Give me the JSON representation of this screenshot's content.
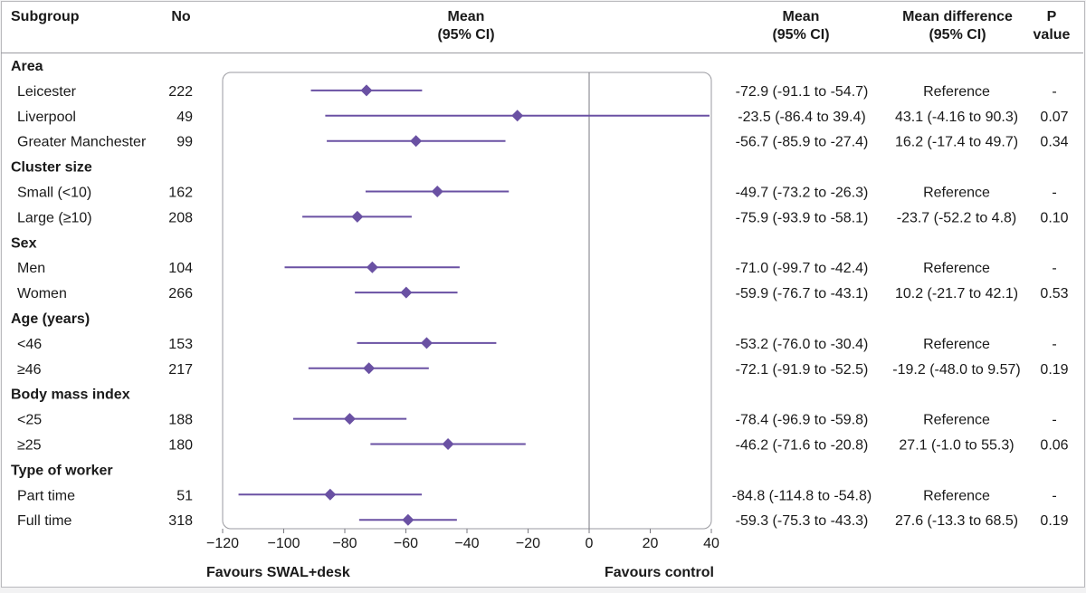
{
  "headers": {
    "subgroup": "Subgroup",
    "no": "No",
    "mean_line1": "Mean",
    "mean_line2": "(95% CI)",
    "mean2_line1": "Mean",
    "mean2_line2": "(95% CI)",
    "diff_line1": "Mean difference",
    "diff_line2": "(95% CI)",
    "p_line1": "P",
    "p_line2": "value"
  },
  "colors": {
    "marker": "#6a51a3",
    "axis": "#7a7a80",
    "panel_border": "#9a9aa0"
  },
  "chart_data": {
    "type": "forest",
    "xlim": [
      -120,
      40
    ],
    "xticks": [
      -120,
      -100,
      -80,
      -60,
      -40,
      -20,
      0,
      20,
      40
    ],
    "reference_line": 0,
    "favours_left": "Favours SWAL+desk",
    "favours_right": "Favours control",
    "rows": [
      {
        "kind": "group",
        "label": "Area"
      },
      {
        "kind": "item",
        "label": "Leicester",
        "n": "222",
        "mean": -72.9,
        "lo": -91.1,
        "hi": -54.7,
        "mean_ci": "-72.9 (-91.1 to -54.7)",
        "diff": "Reference",
        "p": "-"
      },
      {
        "kind": "item",
        "label": "Liverpool",
        "n": "49",
        "mean": -23.5,
        "lo": -86.4,
        "hi": 39.4,
        "mean_ci": "-23.5 (-86.4 to 39.4)",
        "diff": "43.1 (-4.16 to 90.3)",
        "p": "0.07"
      },
      {
        "kind": "item",
        "label": "Greater Manchester",
        "n": "99",
        "mean": -56.7,
        "lo": -85.9,
        "hi": -27.4,
        "mean_ci": "-56.7 (-85.9 to -27.4)",
        "diff": "16.2 (-17.4 to 49.7)",
        "p": "0.34"
      },
      {
        "kind": "group",
        "label": "Cluster size"
      },
      {
        "kind": "item",
        "label": "Small (<10)",
        "n": "162",
        "mean": -49.7,
        "lo": -73.2,
        "hi": -26.3,
        "mean_ci": "-49.7 (-73.2 to -26.3)",
        "diff": "Reference",
        "p": "-"
      },
      {
        "kind": "item",
        "label": "Large (≥10)",
        "n": "208",
        "mean": -75.9,
        "lo": -93.9,
        "hi": -58.1,
        "mean_ci": "-75.9 (-93.9 to -58.1)",
        "diff": "-23.7 (-52.2 to 4.8)",
        "p": "0.10"
      },
      {
        "kind": "group",
        "label": "Sex"
      },
      {
        "kind": "item",
        "label": "Men",
        "n": "104",
        "mean": -71.0,
        "lo": -99.7,
        "hi": -42.4,
        "mean_ci": "-71.0 (-99.7 to -42.4)",
        "diff": "Reference",
        "p": "-"
      },
      {
        "kind": "item",
        "label": "Women",
        "n": "266",
        "mean": -59.9,
        "lo": -76.7,
        "hi": -43.1,
        "mean_ci": "-59.9 (-76.7 to -43.1)",
        "diff": "10.2 (-21.7 to 42.1)",
        "p": "0.53"
      },
      {
        "kind": "group",
        "label": "Age (years)"
      },
      {
        "kind": "item",
        "label": "<46",
        "n": "153",
        "mean": -53.2,
        "lo": -76.0,
        "hi": -30.4,
        "mean_ci": "-53.2 (-76.0 to -30.4)",
        "diff": "Reference",
        "p": "-"
      },
      {
        "kind": "item",
        "label": "≥46",
        "n": "217",
        "mean": -72.1,
        "lo": -91.9,
        "hi": -52.5,
        "mean_ci": "-72.1 (-91.9 to -52.5)",
        "diff": "-19.2 (-48.0 to 9.57)",
        "p": "0.19"
      },
      {
        "kind": "group",
        "label": "Body mass index"
      },
      {
        "kind": "item",
        "label": "<25",
        "n": "188",
        "mean": -78.4,
        "lo": -96.9,
        "hi": -59.8,
        "mean_ci": "-78.4 (-96.9 to -59.8)",
        "diff": "Reference",
        "p": "-"
      },
      {
        "kind": "item",
        "label": "≥25",
        "n": "180",
        "mean": -46.2,
        "lo": -71.6,
        "hi": -20.8,
        "mean_ci": "-46.2 (-71.6 to -20.8)",
        "diff": "27.1 (-1.0 to 55.3)",
        "p": "0.06"
      },
      {
        "kind": "group",
        "label": "Type of worker"
      },
      {
        "kind": "item",
        "label": "Part time",
        "n": "51",
        "mean": -84.8,
        "lo": -114.8,
        "hi": -54.8,
        "mean_ci": "-84.8 (-114.8 to -54.8)",
        "diff": "Reference",
        "p": "-"
      },
      {
        "kind": "item",
        "label": "Full time",
        "n": "318",
        "mean": -59.3,
        "lo": -75.3,
        "hi": -43.3,
        "mean_ci": "-59.3 (-75.3 to -43.3)",
        "diff": "27.6 (-13.3 to 68.5)",
        "p": "0.19"
      }
    ]
  }
}
